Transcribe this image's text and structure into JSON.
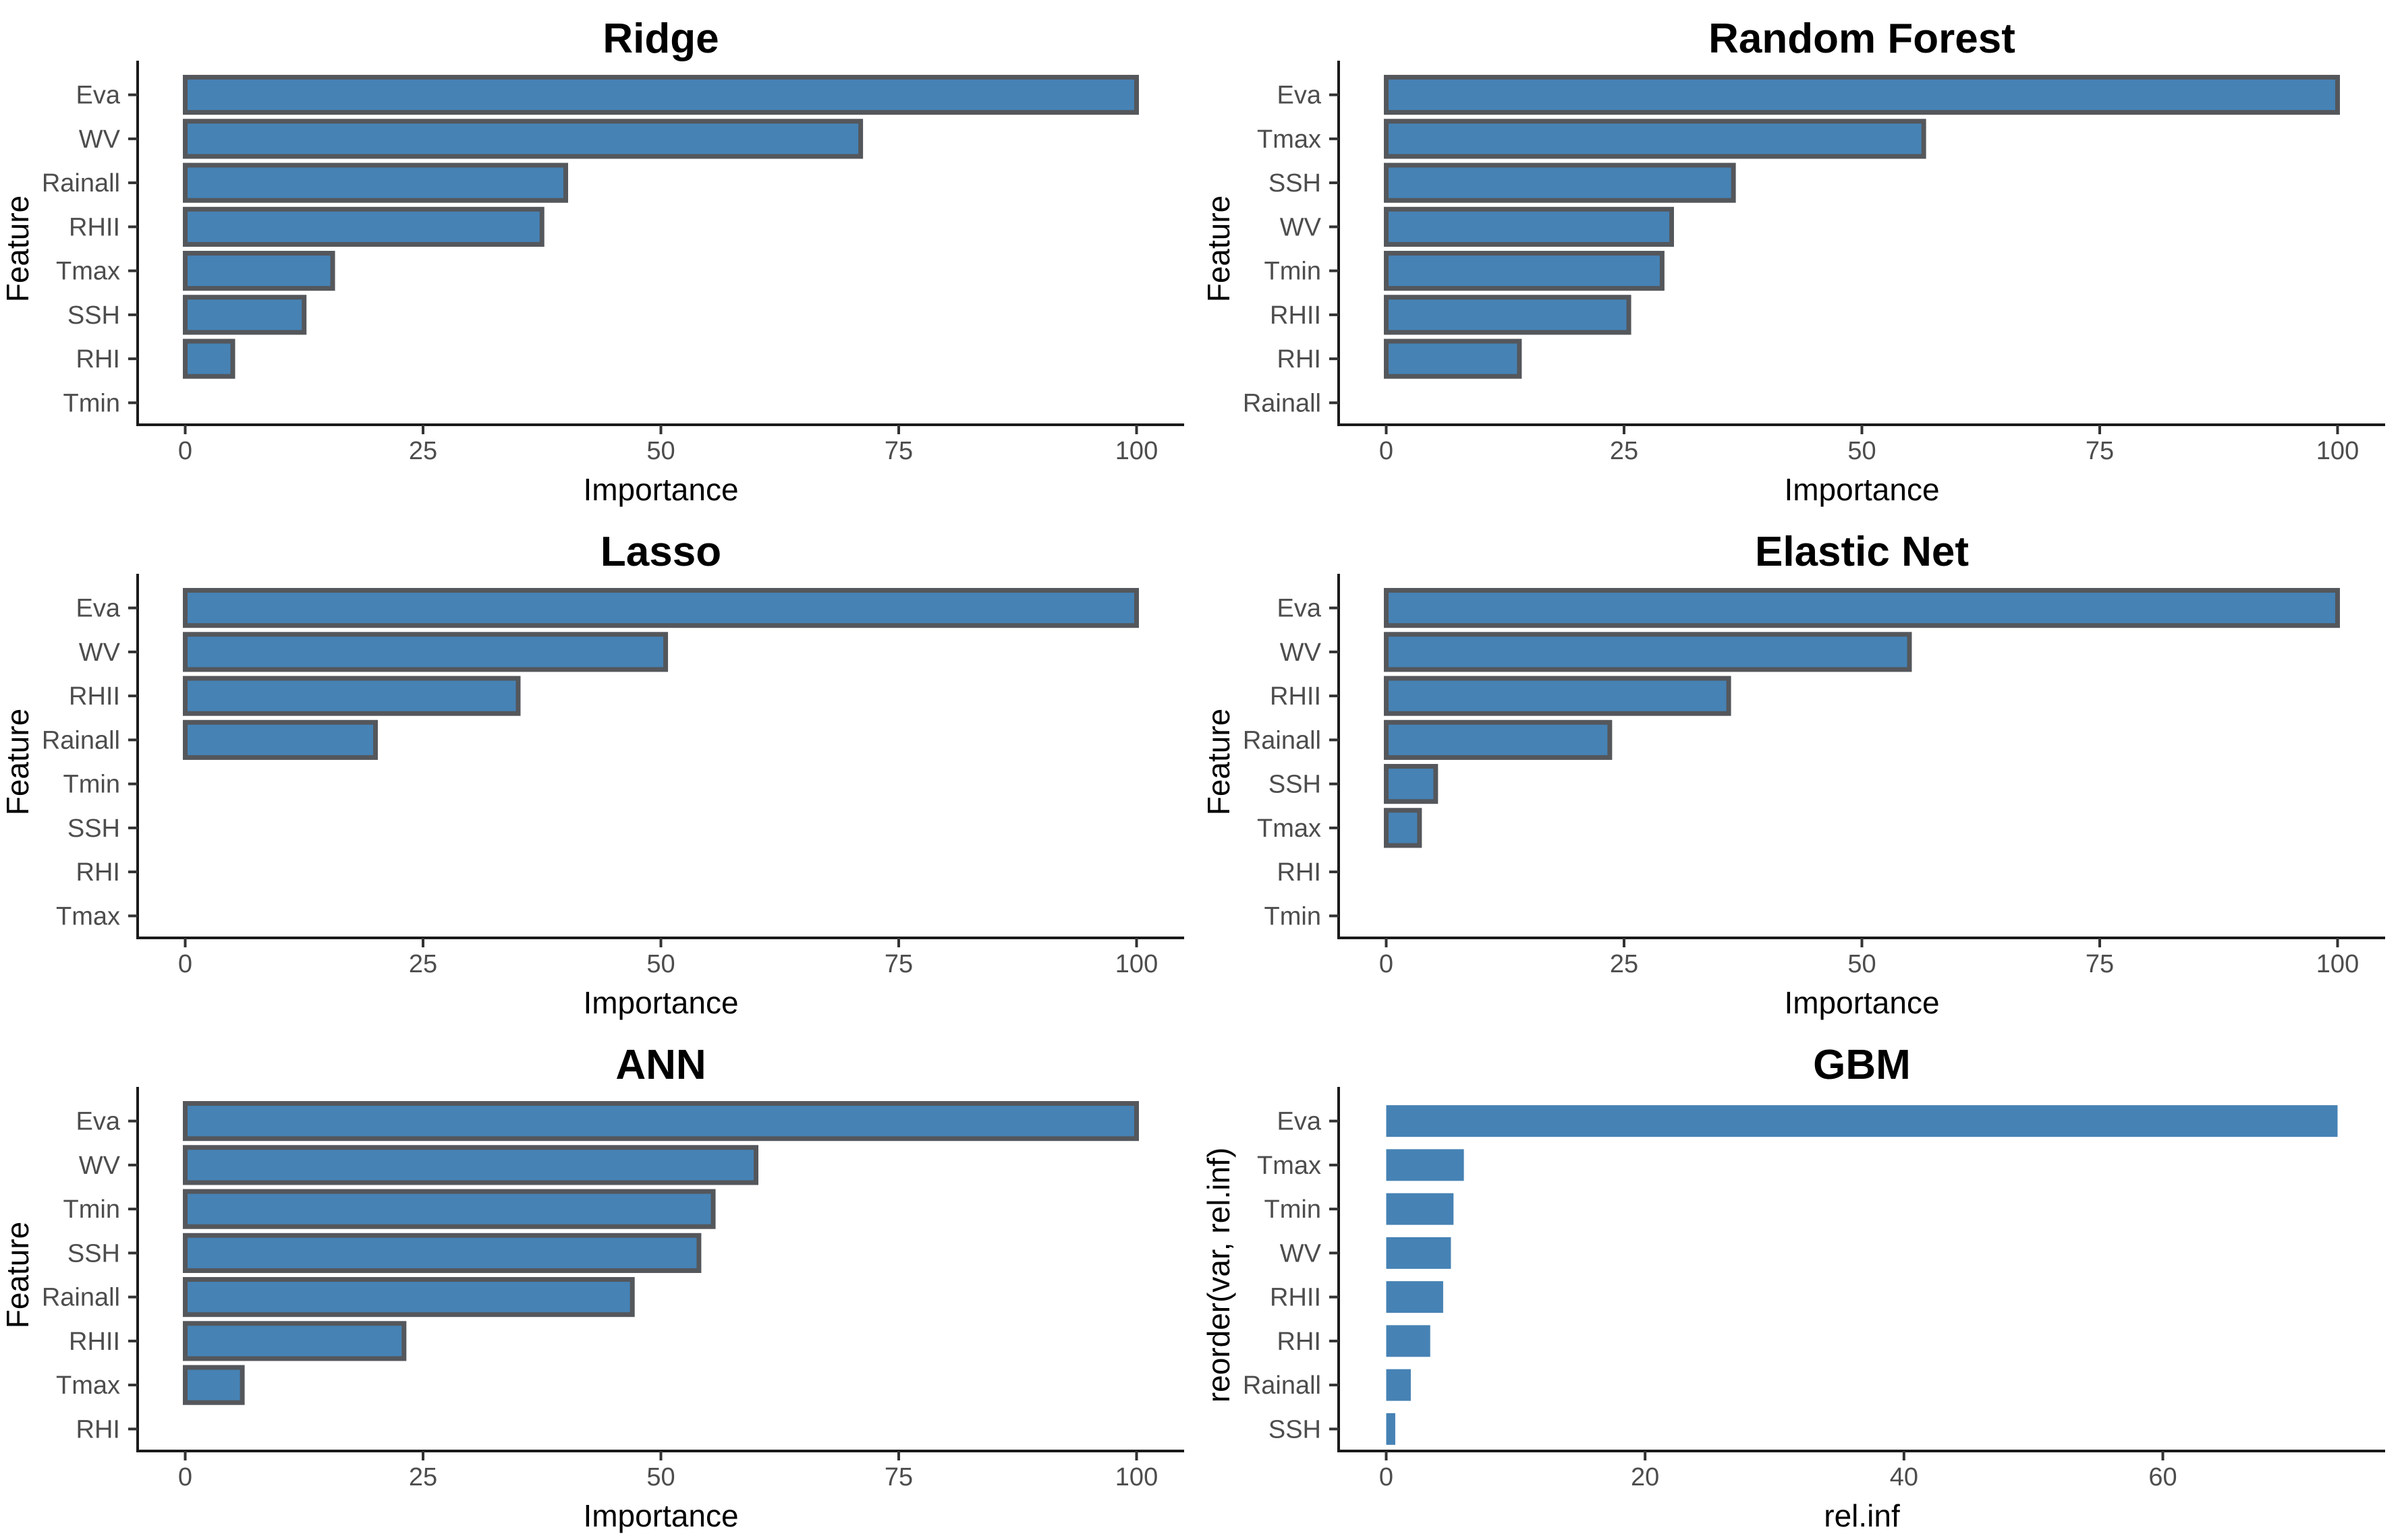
{
  "page": {
    "background": "#ffffff",
    "description_title": "Feature importance bar charts for six models"
  },
  "style": {
    "bar_fill": "#4682B4",
    "bar_stroke": "#54575B",
    "axis_line_color": "#1a1a1a",
    "tick_mark_color": "#333333",
    "tick_label_color": "#4d4d4d",
    "title_color": "#000000",
    "axis_title_color": "#000000"
  },
  "chart_data": [
    {
      "type": "bar",
      "orientation": "horizontal",
      "title": "Ridge",
      "xlabel": "Importance",
      "ylabel": "Feature",
      "categories": [
        "Eva",
        "WV",
        "Rainall",
        "RHII",
        "Tmax",
        "SSH",
        "RHI",
        "Tmin"
      ],
      "values": [
        100,
        71,
        40,
        37.5,
        15.5,
        12.5,
        5,
        0
      ],
      "xticks": [
        0,
        25,
        50,
        75,
        100
      ],
      "xlim": [
        0,
        100
      ],
      "bar_outline": true,
      "grid": false,
      "legend": false
    },
    {
      "type": "bar",
      "orientation": "horizontal",
      "title": "Random Forest",
      "xlabel": "Importance",
      "ylabel": "Feature",
      "categories": [
        "Eva",
        "Tmax",
        "SSH",
        "WV",
        "Tmin",
        "RHII",
        "RHI",
        "Rainall"
      ],
      "values": [
        100,
        56.5,
        36.5,
        30,
        29,
        25.5,
        14,
        0
      ],
      "xticks": [
        0,
        25,
        50,
        75,
        100
      ],
      "xlim": [
        0,
        100
      ],
      "bar_outline": true,
      "grid": false,
      "legend": false
    },
    {
      "type": "bar",
      "orientation": "horizontal",
      "title": "Lasso",
      "xlabel": "Importance",
      "ylabel": "Feature",
      "categories": [
        "Eva",
        "WV",
        "RHII",
        "Rainall",
        "Tmin",
        "SSH",
        "RHI",
        "Tmax"
      ],
      "values": [
        100,
        50.5,
        35,
        20,
        0,
        0,
        0,
        0
      ],
      "xticks": [
        0,
        25,
        50,
        75,
        100
      ],
      "xlim": [
        0,
        100
      ],
      "bar_outline": true,
      "grid": false,
      "legend": false
    },
    {
      "type": "bar",
      "orientation": "horizontal",
      "title": "Elastic Net",
      "xlabel": "Importance",
      "ylabel": "Feature",
      "categories": [
        "Eva",
        "WV",
        "RHII",
        "Rainall",
        "SSH",
        "Tmax",
        "RHI",
        "Tmin"
      ],
      "values": [
        100,
        55,
        36,
        23.5,
        5.2,
        3.5,
        0,
        0
      ],
      "xticks": [
        0,
        25,
        50,
        75,
        100
      ],
      "xlim": [
        0,
        100
      ],
      "bar_outline": true,
      "grid": false,
      "legend": false
    },
    {
      "type": "bar",
      "orientation": "horizontal",
      "title": "ANN",
      "xlabel": "Importance",
      "ylabel": "Feature",
      "categories": [
        "Eva",
        "WV",
        "Tmin",
        "SSH",
        "Rainall",
        "RHII",
        "Tmax",
        "RHI"
      ],
      "values": [
        100,
        60,
        55.5,
        54,
        47,
        23,
        6,
        0
      ],
      "xticks": [
        0,
        25,
        50,
        75,
        100
      ],
      "xlim": [
        0,
        100
      ],
      "bar_outline": true,
      "grid": false,
      "legend": false
    },
    {
      "type": "bar",
      "orientation": "horizontal",
      "title": "GBM",
      "xlabel": "rel.inf",
      "ylabel": "reorder(var, rel.inf)",
      "categories": [
        "Eva",
        "Tmax",
        "Tmin",
        "WV",
        "RHII",
        "RHI",
        "Rainall",
        "SSH"
      ],
      "values": [
        73.5,
        6,
        5.2,
        5,
        4.4,
        3.4,
        1.9,
        0.7
      ],
      "xticks": [
        0,
        20,
        40,
        60
      ],
      "xlim": [
        0,
        73.5
      ],
      "bar_outline": false,
      "grid": false,
      "legend": false
    }
  ]
}
